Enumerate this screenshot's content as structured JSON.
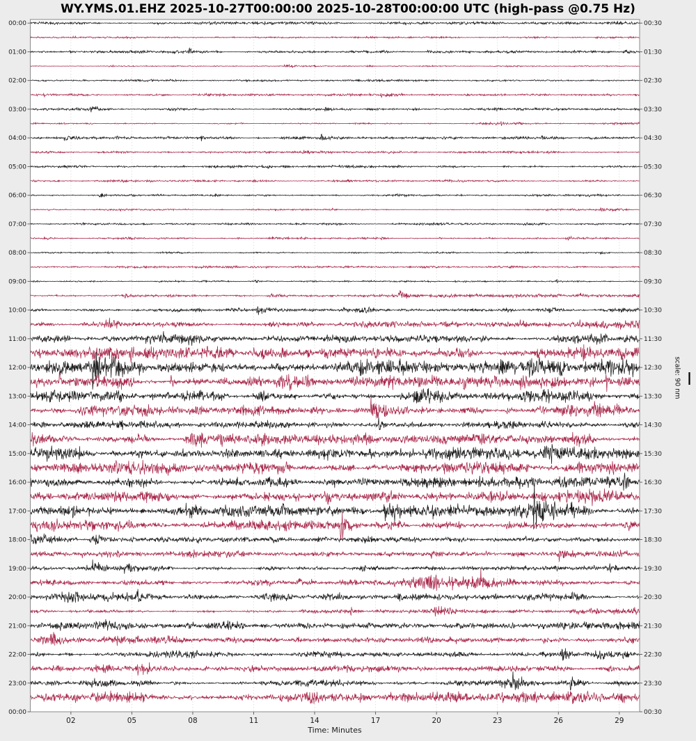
{
  "title": "WY.YMS.01.EHZ 2025-10-27T00:00:00 2025-10-28T00:00:00 UTC (high-pass @0.75 Hz)",
  "figure": {
    "xlabel": "Time: Minutes",
    "scale_label": "scale: 90 nm"
  },
  "chart_data": {
    "type": "line",
    "subtype": "helicorder-dayplot",
    "station": "WY.YMS.01.EHZ",
    "start": "2025-10-27T00:00:00",
    "end": "2025-10-28T00:00:00",
    "timezone": "UTC",
    "filter": "high-pass @0.75 Hz",
    "scale": "90 nm",
    "minutes_per_row": 30,
    "rows_count": 48,
    "x_range_minutes": [
      0,
      30
    ],
    "x_tick_minutes": [
      2,
      5,
      8,
      11,
      14,
      17,
      20,
      23,
      26,
      29
    ],
    "x_tick_labels": [
      "02",
      "05",
      "08",
      "11",
      "14",
      "17",
      "20",
      "23",
      "26",
      "29"
    ],
    "left_time_labels": [
      "00:00",
      "01:00",
      "02:00",
      "03:00",
      "04:00",
      "05:00",
      "06:00",
      "07:00",
      "08:00",
      "09:00",
      "10:00",
      "11:00",
      "12:00",
      "13:00",
      "14:00",
      "15:00",
      "16:00",
      "17:00",
      "18:00",
      "19:00",
      "20:00",
      "21:00",
      "22:00",
      "23:00",
      "00:00"
    ],
    "right_time_labels": [
      "00:30",
      "01:30",
      "02:30",
      "03:30",
      "04:30",
      "05:30",
      "06:30",
      "07:30",
      "08:30",
      "09:30",
      "10:30",
      "11:30",
      "12:30",
      "13:30",
      "14:30",
      "15:30",
      "16:30",
      "17:30",
      "18:30",
      "19:30",
      "20:30",
      "21:30",
      "22:30",
      "23:30",
      "00:30"
    ],
    "colors": {
      "even_row_trace": "#1c1c1c",
      "odd_row_trace": "#a8274a",
      "plot_background": "#ffffff",
      "figure_background": "#ececec",
      "grid": "#d8d8d8",
      "spine": "#8a8a8a",
      "tick_text": "#1a1a1a"
    },
    "rows": [
      {
        "start": "00:00",
        "color": "black",
        "env": [
          1.5,
          1.3,
          1.3,
          1.8,
          1.5,
          1.3,
          2.0,
          1.5,
          2.2,
          1.5
        ]
      },
      {
        "start": "00:30",
        "color": "red",
        "env": [
          1.2,
          1.1,
          1.3,
          1.1,
          1.2,
          1.1,
          1.2,
          1.3,
          1.1,
          1.2
        ]
      },
      {
        "start": "01:00",
        "color": "black",
        "env": [
          1.3,
          1.5,
          1.8,
          1.4,
          1.2,
          1.5,
          1.3,
          1.6,
          1.3,
          1.4
        ]
      },
      {
        "start": "01:30",
        "color": "red",
        "env": [
          0.8,
          0.8,
          0.9,
          0.8,
          0.8,
          0.9,
          0.8,
          0.8,
          0.9,
          0.8
        ]
      },
      {
        "start": "02:00",
        "color": "black",
        "env": [
          1.1,
          1.2,
          1.1,
          1.3,
          1.1,
          1.2,
          1.1,
          1.2,
          1.1,
          1.2
        ]
      },
      {
        "start": "02:30",
        "color": "red",
        "env": [
          1.2,
          1.3,
          1.5,
          1.2,
          1.3,
          1.2,
          1.4,
          1.2,
          1.3,
          1.2
        ]
      },
      {
        "start": "03:00",
        "color": "black",
        "env": [
          1.4,
          2.2,
          1.6,
          1.4,
          1.5,
          1.8,
          1.4,
          1.5,
          1.4,
          1.6
        ]
      },
      {
        "start": "03:30",
        "color": "red",
        "env": [
          1.1,
          1.2,
          1.1,
          1.3,
          1.1,
          1.2,
          1.1,
          1.2,
          1.1,
          1.1
        ]
      },
      {
        "start": "04:00",
        "color": "black",
        "env": [
          1.4,
          1.5,
          1.6,
          1.4,
          1.5,
          1.4,
          1.6,
          1.4,
          1.5,
          1.4
        ]
      },
      {
        "start": "04:30",
        "color": "red",
        "env": [
          1.2,
          1.3,
          1.2,
          1.4,
          1.2,
          1.3,
          1.2,
          1.8,
          1.3,
          1.2
        ]
      },
      {
        "start": "05:00",
        "color": "black",
        "env": [
          1.5,
          2.0,
          1.8,
          2.2,
          1.6,
          1.8,
          1.5,
          1.7,
          1.5,
          1.6
        ]
      },
      {
        "start": "05:30",
        "color": "red",
        "env": [
          1.3,
          1.6,
          1.3,
          1.2,
          1.3,
          1.2,
          1.3,
          1.2,
          1.3,
          1.2
        ]
      },
      {
        "start": "06:00",
        "color": "black",
        "env": [
          1.2,
          1.2,
          1.3,
          1.2,
          1.2,
          1.3,
          1.2,
          1.2,
          1.3,
          1.2
        ]
      },
      {
        "start": "06:30",
        "color": "red",
        "env": [
          1.0,
          1.1,
          1.0,
          1.1,
          1.0,
          1.1,
          1.0,
          1.1,
          1.0,
          1.0
        ]
      },
      {
        "start": "07:00",
        "color": "black",
        "env": [
          1.2,
          1.3,
          1.2,
          1.2,
          1.3,
          1.2,
          1.2,
          1.3,
          1.2,
          1.2
        ]
      },
      {
        "start": "07:30",
        "color": "red",
        "env": [
          1.0,
          1.1,
          1.0,
          1.1,
          1.0,
          1.0,
          1.1,
          1.0,
          1.1,
          1.0
        ]
      },
      {
        "start": "08:00",
        "color": "black",
        "env": [
          1.0,
          1.0,
          1.1,
          1.0,
          1.0,
          1.1,
          1.0,
          1.0,
          1.1,
          1.0
        ]
      },
      {
        "start": "08:30",
        "color": "red",
        "env": [
          1.2,
          1.2,
          1.3,
          1.2,
          1.2,
          1.3,
          1.2,
          1.2,
          1.3,
          1.2
        ]
      },
      {
        "start": "09:00",
        "color": "black",
        "env": [
          1.2,
          1.3,
          1.2,
          1.3,
          1.2,
          1.3,
          1.2,
          1.3,
          1.2,
          1.3
        ]
      },
      {
        "start": "09:30",
        "color": "red",
        "env": [
          1.4,
          1.5,
          1.6,
          1.5,
          1.6,
          1.5,
          1.8,
          2.4,
          1.8,
          2.0
        ]
      },
      {
        "start": "10:00",
        "color": "black",
        "env": [
          2.2,
          2.6,
          2.4,
          2.8,
          2.4,
          2.6,
          2.2,
          2.6,
          2.4,
          3.0
        ]
      },
      {
        "start": "10:30",
        "color": "red",
        "env": [
          3.0,
          4.5,
          3.5,
          3.0,
          3.2,
          3.5,
          4.5,
          3.5,
          5.0,
          4.0
        ]
      },
      {
        "start": "11:00",
        "color": "black",
        "env": [
          4.0,
          4.5,
          6.5,
          4.5,
          4.0,
          4.5,
          5.0,
          5.5,
          5.0,
          6.0
        ]
      },
      {
        "start": "11:30",
        "color": "red",
        "env": [
          6.0,
          7.0,
          6.5,
          7.0,
          6.0,
          6.5,
          6.0,
          7.0,
          6.5,
          7.0
        ]
      },
      {
        "start": "12:00",
        "color": "black",
        "env": [
          8.0,
          8.5,
          8.0,
          8.5,
          8.0,
          8.5,
          8.0,
          8.5,
          9.0,
          9.5
        ]
      },
      {
        "start": "12:30",
        "color": "red",
        "env": [
          6.5,
          7.5,
          7.0,
          6.5,
          7.5,
          7.0,
          6.5,
          7.0,
          6.5,
          7.0
        ]
      },
      {
        "start": "13:00",
        "color": "black",
        "env": [
          6.5,
          7.0,
          6.5,
          6.0,
          6.5,
          7.0,
          6.5,
          7.5,
          7.0,
          6.5
        ]
      },
      {
        "start": "13:30",
        "color": "red",
        "env": [
          5.5,
          6.5,
          6.0,
          5.5,
          6.0,
          5.5,
          6.0,
          5.5,
          6.0,
          5.5
        ]
      },
      {
        "start": "14:00",
        "color": "black",
        "env": [
          4.0,
          4.5,
          4.2,
          4.5,
          4.0,
          4.5,
          4.2,
          4.5,
          4.2,
          4.5
        ]
      },
      {
        "start": "14:30",
        "color": "red",
        "env": [
          6.0,
          7.0,
          6.5,
          7.0,
          6.0,
          6.5,
          6.0,
          7.0,
          6.5,
          8.0
        ]
      },
      {
        "start": "15:00",
        "color": "black",
        "env": [
          9.0,
          8.0,
          7.5,
          8.5,
          8.0,
          7.5,
          8.0,
          7.5,
          8.0,
          8.5
        ]
      },
      {
        "start": "15:30",
        "color": "red",
        "env": [
          6.5,
          7.0,
          6.5,
          7.5,
          6.5,
          7.0,
          6.5,
          7.0,
          7.5,
          7.0
        ]
      },
      {
        "start": "16:00",
        "color": "black",
        "env": [
          6.5,
          6.0,
          6.5,
          7.0,
          6.5,
          6.0,
          7.0,
          6.5,
          8.5,
          6.5
        ]
      },
      {
        "start": "16:30",
        "color": "red",
        "env": [
          6.5,
          7.0,
          6.5,
          6.0,
          6.5,
          7.0,
          6.5,
          7.0,
          6.5,
          6.0
        ]
      },
      {
        "start": "17:00",
        "color": "black",
        "env": [
          7.0,
          6.5,
          7.0,
          6.5,
          7.0,
          6.5,
          7.0,
          8.0,
          9.0,
          7.0
        ]
      },
      {
        "start": "17:30",
        "color": "red",
        "env": [
          6.0,
          5.5,
          6.0,
          5.5,
          5.0,
          5.5,
          5.0,
          5.5,
          5.0,
          5.5
        ]
      },
      {
        "start": "18:00",
        "color": "black",
        "env": [
          6.0,
          4.0,
          3.5,
          3.0,
          3.5,
          3.0,
          2.8,
          3.0,
          2.8,
          2.5
        ]
      },
      {
        "start": "18:30",
        "color": "red",
        "env": [
          3.0,
          3.5,
          4.0,
          4.5,
          4.0,
          3.5,
          3.0,
          3.5,
          3.0,
          3.2
        ]
      },
      {
        "start": "19:00",
        "color": "black",
        "env": [
          2.5,
          3.0,
          3.5,
          3.0,
          2.8,
          3.0,
          2.8,
          3.0,
          2.8,
          3.0
        ]
      },
      {
        "start": "19:30",
        "color": "red",
        "env": [
          3.0,
          3.5,
          3.0,
          3.5,
          3.0,
          5.5,
          8.0,
          4.0,
          3.5,
          4.5
        ]
      },
      {
        "start": "20:00",
        "color": "black",
        "env": [
          4.5,
          5.0,
          4.5,
          5.0,
          4.5,
          4.0,
          4.5,
          4.0,
          3.5,
          4.0
        ]
      },
      {
        "start": "20:30",
        "color": "red",
        "env": [
          2.5,
          2.8,
          2.5,
          2.8,
          2.5,
          2.8,
          2.5,
          2.8,
          2.5,
          5.5
        ]
      },
      {
        "start": "21:00",
        "color": "black",
        "env": [
          4.5,
          5.5,
          9.0,
          7.0,
          6.0,
          4.5,
          4.0,
          4.5,
          4.0,
          4.5
        ]
      },
      {
        "start": "21:30",
        "color": "red",
        "env": [
          4.0,
          4.5,
          4.0,
          3.5,
          3.5,
          3.0,
          3.5,
          3.0,
          3.5,
          4.0
        ]
      },
      {
        "start": "22:00",
        "color": "black",
        "env": [
          3.0,
          3.5,
          4.0,
          3.5,
          3.5,
          4.0,
          3.5,
          3.5,
          3.0,
          7.0
        ]
      },
      {
        "start": "22:30",
        "color": "red",
        "env": [
          3.5,
          6.5,
          3.5,
          3.5,
          3.0,
          3.5,
          3.0,
          3.5,
          3.0,
          3.5
        ]
      },
      {
        "start": "23:00",
        "color": "black",
        "env": [
          3.5,
          4.0,
          3.5,
          3.5,
          5.5,
          3.5,
          3.0,
          6.0,
          3.5,
          4.5
        ]
      },
      {
        "start": "23:30",
        "color": "red",
        "env": [
          5.0,
          5.5,
          6.0,
          5.5,
          5.5,
          6.0,
          5.5,
          6.5,
          6.0,
          6.5
        ]
      }
    ]
  }
}
